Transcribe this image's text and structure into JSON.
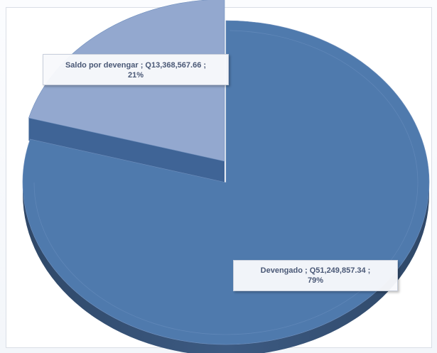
{
  "chart_data": {
    "type": "pie",
    "style": "3d-exploded",
    "title": "",
    "slices": [
      {
        "name": "Devengado",
        "value": 51249857.34,
        "value_text": "Q51,249,857.34",
        "percent": 79,
        "percent_text": "79%",
        "color": "#4f7aad"
      },
      {
        "name": "Saldo por devengar",
        "value": 13368567.66,
        "value_text": "Q13,368,567.66",
        "percent": 21,
        "percent_text": "21%",
        "color": "#93a8cf"
      }
    ],
    "legend": "none"
  }
}
